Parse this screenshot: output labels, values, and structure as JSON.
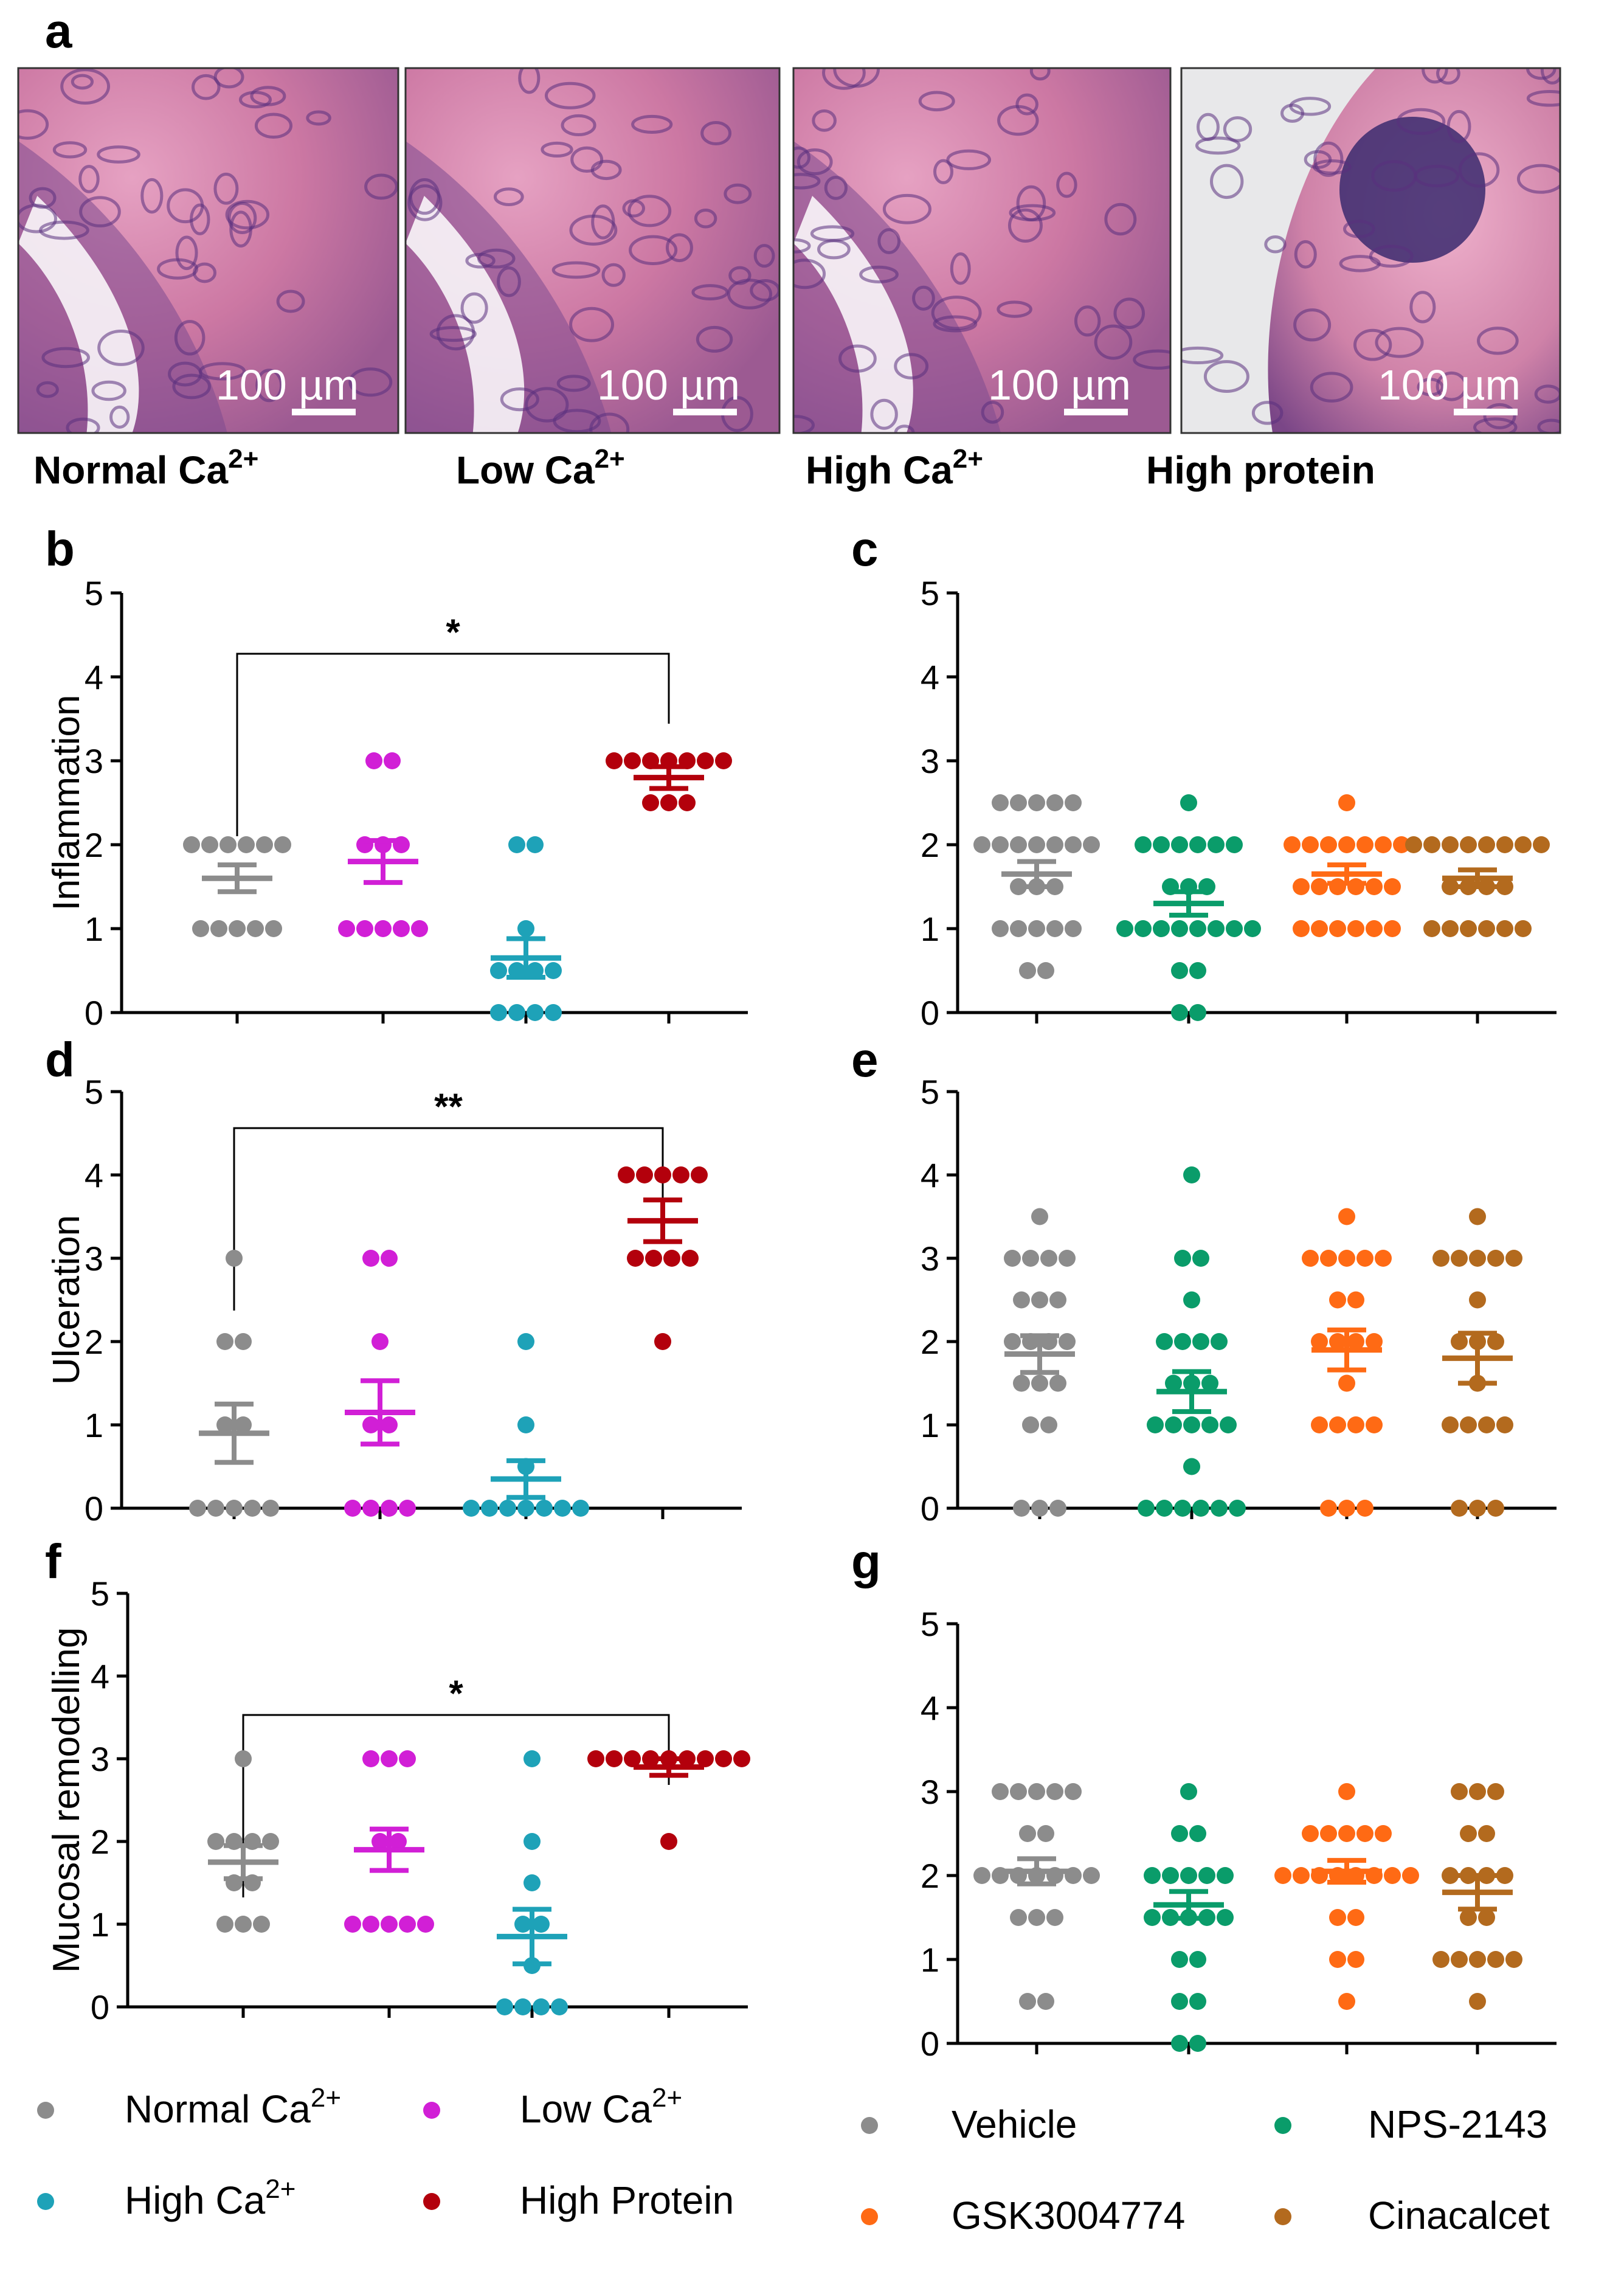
{
  "panel_a": {
    "letter": "a",
    "scale_label": "100 µm",
    "images": [
      {
        "label": "Normal Ca",
        "sup": "2+"
      },
      {
        "label": "Low  Ca",
        "sup": "2+"
      },
      {
        "label": "High Ca",
        "sup": "2+"
      },
      {
        "label": "High protein",
        "sup": ""
      }
    ]
  },
  "colors": {
    "normal": "#8c8c8c",
    "low": "#d11fd6",
    "high": "#1ea2b8",
    "protein": "#b3000c",
    "vehicle": "#8c8c8c",
    "nps": "#0a9c6a",
    "gsk": "#ff6a14",
    "cinacalcet": "#b36a1e",
    "axis": "#000000"
  },
  "legend_left": [
    {
      "key": "normal",
      "label": "Normal Ca",
      "sup": "2+"
    },
    {
      "key": "low",
      "label": "Low Ca",
      "sup": "2+"
    },
    {
      "key": "high",
      "label": "High Ca",
      "sup": "2+"
    },
    {
      "key": "protein",
      "label": "High Protein",
      "sup": ""
    }
  ],
  "legend_right": [
    {
      "key": "vehicle",
      "label": "Vehicle"
    },
    {
      "key": "nps",
      "label": "NPS-2143"
    },
    {
      "key": "gsk",
      "label": "GSK3004774"
    },
    {
      "key": "cinacalcet",
      "label": "Cinacalcet"
    }
  ],
  "chart_data": [
    {
      "id": "b",
      "letter": "b",
      "type": "scatter",
      "ylabel": "Inflammation",
      "ylim": [
        0,
        5
      ],
      "yticks": [
        0,
        1,
        2,
        3,
        4,
        5
      ],
      "significance": {
        "from": 0,
        "to": 3,
        "label": "*"
      },
      "series": [
        {
          "name": "Normal Ca2+",
          "key": "normal",
          "mean": 1.6,
          "sem": 0.16,
          "points": [
            2,
            2,
            2,
            2,
            2,
            2,
            1,
            1,
            1,
            1,
            1
          ]
        },
        {
          "name": "Low Ca2+",
          "key": "low",
          "mean": 1.8,
          "sem": 0.25,
          "points": [
            3,
            3,
            2,
            2,
            2,
            1,
            1,
            1,
            1,
            1
          ]
        },
        {
          "name": "High Ca2+",
          "key": "high",
          "mean": 0.65,
          "sem": 0.23,
          "points": [
            2,
            2,
            1,
            0.5,
            0.5,
            0.5,
            0.5,
            0,
            0,
            0,
            0
          ]
        },
        {
          "name": "High Protein",
          "key": "protein",
          "mean": 2.8,
          "sem": 0.13,
          "points": [
            3,
            3,
            3,
            3,
            3,
            3,
            3,
            2.5,
            2.5,
            2.5
          ]
        }
      ]
    },
    {
      "id": "c",
      "letter": "c",
      "type": "scatter",
      "ylabel": "",
      "ylim": [
        0,
        5
      ],
      "yticks": [
        0,
        1,
        2,
        3,
        4,
        5
      ],
      "series": [
        {
          "name": "Vehicle",
          "key": "vehicle",
          "mean": 1.65,
          "sem": 0.15,
          "points": [
            2.5,
            2.5,
            2.5,
            2.5,
            2.5,
            2,
            2,
            2,
            2,
            2,
            2,
            2,
            1.5,
            1.5,
            1.5,
            1,
            1,
            1,
            1,
            1,
            0.5,
            0.5
          ]
        },
        {
          "name": "NPS-2143",
          "key": "nps",
          "mean": 1.3,
          "sem": 0.14,
          "points": [
            2.5,
            2,
            2,
            2,
            2,
            2,
            2,
            1.5,
            1.5,
            1.5,
            1,
            1,
            1,
            1,
            1,
            1,
            1,
            1,
            0.5,
            0.5,
            0,
            0
          ]
        },
        {
          "name": "GSK3004774",
          "key": "gsk",
          "mean": 1.65,
          "sem": 0.11,
          "points": [
            2.5,
            2,
            2,
            2,
            2,
            2,
            2,
            2,
            1.5,
            1.5,
            1.5,
            1.5,
            1.5,
            1.5,
            1,
            1,
            1,
            1,
            1,
            1
          ]
        },
        {
          "name": "Cinacalcet",
          "key": "cinacalcet",
          "mean": 1.6,
          "sem": 0.1,
          "points": [
            2,
            2,
            2,
            2,
            2,
            2,
            2,
            2,
            1.5,
            1.5,
            1.5,
            1.5,
            1,
            1,
            1,
            1,
            1,
            1
          ]
        }
      ]
    },
    {
      "id": "d",
      "letter": "d",
      "type": "scatter",
      "ylabel": "Ulceration",
      "ylim": [
        0,
        5
      ],
      "yticks": [
        0,
        1,
        2,
        3,
        4,
        5
      ],
      "significance": {
        "from": 0,
        "to": 3,
        "label": "**"
      },
      "series": [
        {
          "name": "Normal Ca2+",
          "key": "normal",
          "mean": 0.9,
          "sem": 0.35,
          "points": [
            3,
            2,
            2,
            1,
            1,
            0,
            0,
            0,
            0,
            0
          ]
        },
        {
          "name": "Low Ca2+",
          "key": "low",
          "mean": 1.15,
          "sem": 0.38,
          "points": [
            3,
            3,
            2,
            1,
            1,
            0,
            0,
            0,
            0
          ]
        },
        {
          "name": "High Ca2+",
          "key": "high",
          "mean": 0.35,
          "sem": 0.22,
          "points": [
            2,
            1,
            0.5,
            0,
            0,
            0,
            0,
            0,
            0,
            0
          ]
        },
        {
          "name": "High Protein",
          "key": "protein",
          "mean": 3.45,
          "sem": 0.25,
          "points": [
            4,
            4,
            4,
            4,
            4,
            3,
            3,
            3,
            3,
            2
          ]
        }
      ]
    },
    {
      "id": "e",
      "letter": "e",
      "type": "scatter",
      "ylabel": "",
      "ylim": [
        0,
        5
      ],
      "yticks": [
        0,
        1,
        2,
        3,
        4,
        5
      ],
      "series": [
        {
          "name": "Vehicle",
          "key": "vehicle",
          "mean": 1.85,
          "sem": 0.22,
          "points": [
            3.5,
            3,
            3,
            3,
            3,
            2.5,
            2.5,
            2.5,
            2,
            2,
            2,
            2,
            1.5,
            1.5,
            1.5,
            1,
            1,
            0,
            0,
            0
          ]
        },
        {
          "name": "NPS-2143",
          "key": "nps",
          "mean": 1.4,
          "sem": 0.24,
          "points": [
            4,
            3,
            3,
            2.5,
            2,
            2,
            2,
            2,
            1.5,
            1.5,
            1.5,
            1,
            1,
            1,
            1,
            1,
            0.5,
            0,
            0,
            0,
            0,
            0,
            0
          ]
        },
        {
          "name": "GSK3004774",
          "key": "gsk",
          "mean": 1.9,
          "sem": 0.24,
          "points": [
            3.5,
            3,
            3,
            3,
            3,
            3,
            2.5,
            2.5,
            2,
            2,
            2,
            2,
            1.5,
            1,
            1,
            1,
            1,
            0,
            0,
            0
          ]
        },
        {
          "name": "Cinacalcet",
          "key": "cinacalcet",
          "mean": 1.8,
          "sem": 0.3,
          "points": [
            3.5,
            3,
            3,
            3,
            3,
            3,
            2.5,
            2,
            2,
            2,
            1.5,
            1,
            1,
            1,
            1,
            0,
            0,
            0
          ]
        }
      ]
    },
    {
      "id": "f",
      "letter": "f",
      "type": "scatter",
      "ylabel": "Mucosal remodelling",
      "ylim": [
        0,
        5
      ],
      "yticks": [
        0,
        1,
        2,
        3,
        4,
        5
      ],
      "significance": {
        "from": 0,
        "to": 3,
        "label": "*"
      },
      "series": [
        {
          "name": "Normal Ca2+",
          "key": "normal",
          "mean": 1.75,
          "sem": 0.2,
          "points": [
            3,
            2,
            2,
            2,
            2,
            1.5,
            1.5,
            1,
            1,
            1
          ]
        },
        {
          "name": "Low Ca2+",
          "key": "low",
          "mean": 1.9,
          "sem": 0.25,
          "points": [
            3,
            3,
            3,
            2,
            2,
            1,
            1,
            1,
            1,
            1
          ]
        },
        {
          "name": "High Ca2+",
          "key": "high",
          "mean": 0.85,
          "sem": 0.33,
          "points": [
            3,
            2,
            1.5,
            1,
            1,
            0.5,
            0,
            0,
            0,
            0
          ]
        },
        {
          "name": "High Protein",
          "key": "protein",
          "mean": 2.9,
          "sem": 0.1,
          "points": [
            3,
            3,
            3,
            3,
            3,
            3,
            3,
            3,
            3,
            2
          ]
        }
      ]
    },
    {
      "id": "g",
      "letter": "g",
      "type": "scatter",
      "ylabel": "",
      "ylim": [
        0,
        5
      ],
      "yticks": [
        0,
        1,
        2,
        3,
        4,
        5
      ],
      "series": [
        {
          "name": "Vehicle",
          "key": "vehicle",
          "mean": 2.05,
          "sem": 0.15,
          "points": [
            3,
            3,
            3,
            3,
            3,
            2.5,
            2.5,
            2,
            2,
            2,
            2,
            2,
            2,
            2,
            1.5,
            1.5,
            1.5,
            0.5,
            0.5
          ]
        },
        {
          "name": "NPS-2143",
          "key": "nps",
          "mean": 1.65,
          "sem": 0.16,
          "points": [
            3,
            2.5,
            2.5,
            2,
            2,
            2,
            2,
            2,
            1.5,
            1.5,
            1.5,
            1.5,
            1.5,
            1,
            1,
            0.5,
            0.5,
            0,
            0
          ]
        },
        {
          "name": "GSK3004774",
          "key": "gsk",
          "mean": 2.05,
          "sem": 0.13,
          "points": [
            3,
            2.5,
            2.5,
            2.5,
            2.5,
            2.5,
            2,
            2,
            2,
            2,
            2,
            2,
            2,
            2,
            1.5,
            1.5,
            1,
            1,
            0.5
          ]
        },
        {
          "name": "Cinacalcet",
          "key": "cinacalcet",
          "mean": 1.8,
          "sem": 0.2,
          "points": [
            3,
            3,
            3,
            2.5,
            2.5,
            2,
            2,
            2,
            2,
            1.5,
            1.5,
            1,
            1,
            1,
            1,
            1,
            0.5
          ]
        }
      ]
    }
  ]
}
